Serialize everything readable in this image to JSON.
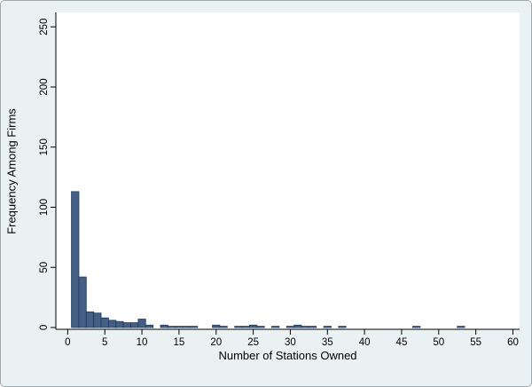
{
  "figure": {
    "background": "#eaf1f3",
    "plot_background": "#ffffff",
    "bar_fill": "#455f84",
    "bar_stroke": "#1b3a5e",
    "axis_color": "#000000",
    "tick_label_color": "#000000"
  },
  "chart_data": {
    "type": "bar",
    "title": "",
    "xlabel": "Number of Stations Owned",
    "ylabel": "Frequency Among Firms",
    "xlim": [
      -1.6,
      60.9
    ],
    "ylim": [
      -1.5,
      262
    ],
    "xticks": [
      0,
      5,
      10,
      15,
      20,
      25,
      30,
      35,
      40,
      45,
      50,
      55,
      60
    ],
    "yticks": [
      0,
      50,
      100,
      150,
      200,
      250
    ],
    "grid": false,
    "legend": false,
    "bin_width": 1,
    "bins": [
      {
        "x": 1,
        "count": 113
      },
      {
        "x": 2,
        "count": 42
      },
      {
        "x": 3,
        "count": 13
      },
      {
        "x": 4,
        "count": 12
      },
      {
        "x": 5,
        "count": 8
      },
      {
        "x": 6,
        "count": 6
      },
      {
        "x": 7,
        "count": 5
      },
      {
        "x": 8,
        "count": 4
      },
      {
        "x": 9,
        "count": 4
      },
      {
        "x": 10,
        "count": 7
      },
      {
        "x": 11,
        "count": 2
      },
      {
        "x": 13,
        "count": 2
      },
      {
        "x": 14,
        "count": 1
      },
      {
        "x": 15,
        "count": 1
      },
      {
        "x": 16,
        "count": 1
      },
      {
        "x": 17,
        "count": 1
      },
      {
        "x": 20,
        "count": 2
      },
      {
        "x": 21,
        "count": 1
      },
      {
        "x": 23,
        "count": 1
      },
      {
        "x": 24,
        "count": 1
      },
      {
        "x": 25,
        "count": 2
      },
      {
        "x": 26,
        "count": 1
      },
      {
        "x": 28,
        "count": 1
      },
      {
        "x": 30,
        "count": 1
      },
      {
        "x": 31,
        "count": 2
      },
      {
        "x": 32,
        "count": 1
      },
      {
        "x": 33,
        "count": 1
      },
      {
        "x": 35,
        "count": 1
      },
      {
        "x": 37,
        "count": 1
      },
      {
        "x": 47,
        "count": 1
      },
      {
        "x": 53,
        "count": 1
      }
    ]
  }
}
